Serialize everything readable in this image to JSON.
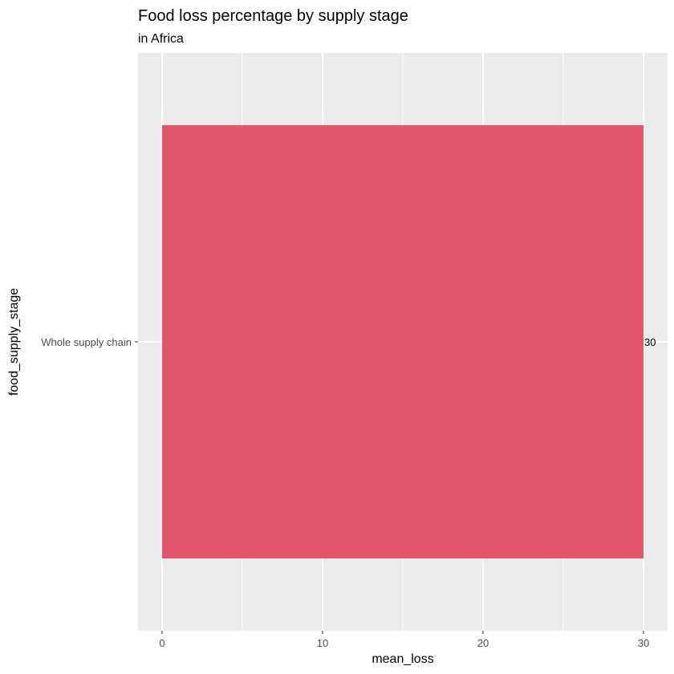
{
  "chart_data": {
    "type": "bar",
    "orientation": "horizontal",
    "title": "Food loss percentage by supply stage",
    "subtitle": "in Africa",
    "xlabel": "mean_loss",
    "ylabel": "food_supply_stage",
    "categories": [
      "Whole supply chain"
    ],
    "values": [
      30
    ],
    "data_labels": [
      "30"
    ],
    "xlim": [
      -1.5,
      31.5
    ],
    "x_ticks": [
      0,
      10,
      20,
      30
    ],
    "x_tick_labels": [
      "0",
      "10",
      "20",
      "30"
    ],
    "x_minor_ticks": [
      5,
      15,
      25
    ],
    "grid": true,
    "bar_color": "#e0566b",
    "panel_background": "#ebebeb",
    "grid_color": "#ffffff"
  }
}
